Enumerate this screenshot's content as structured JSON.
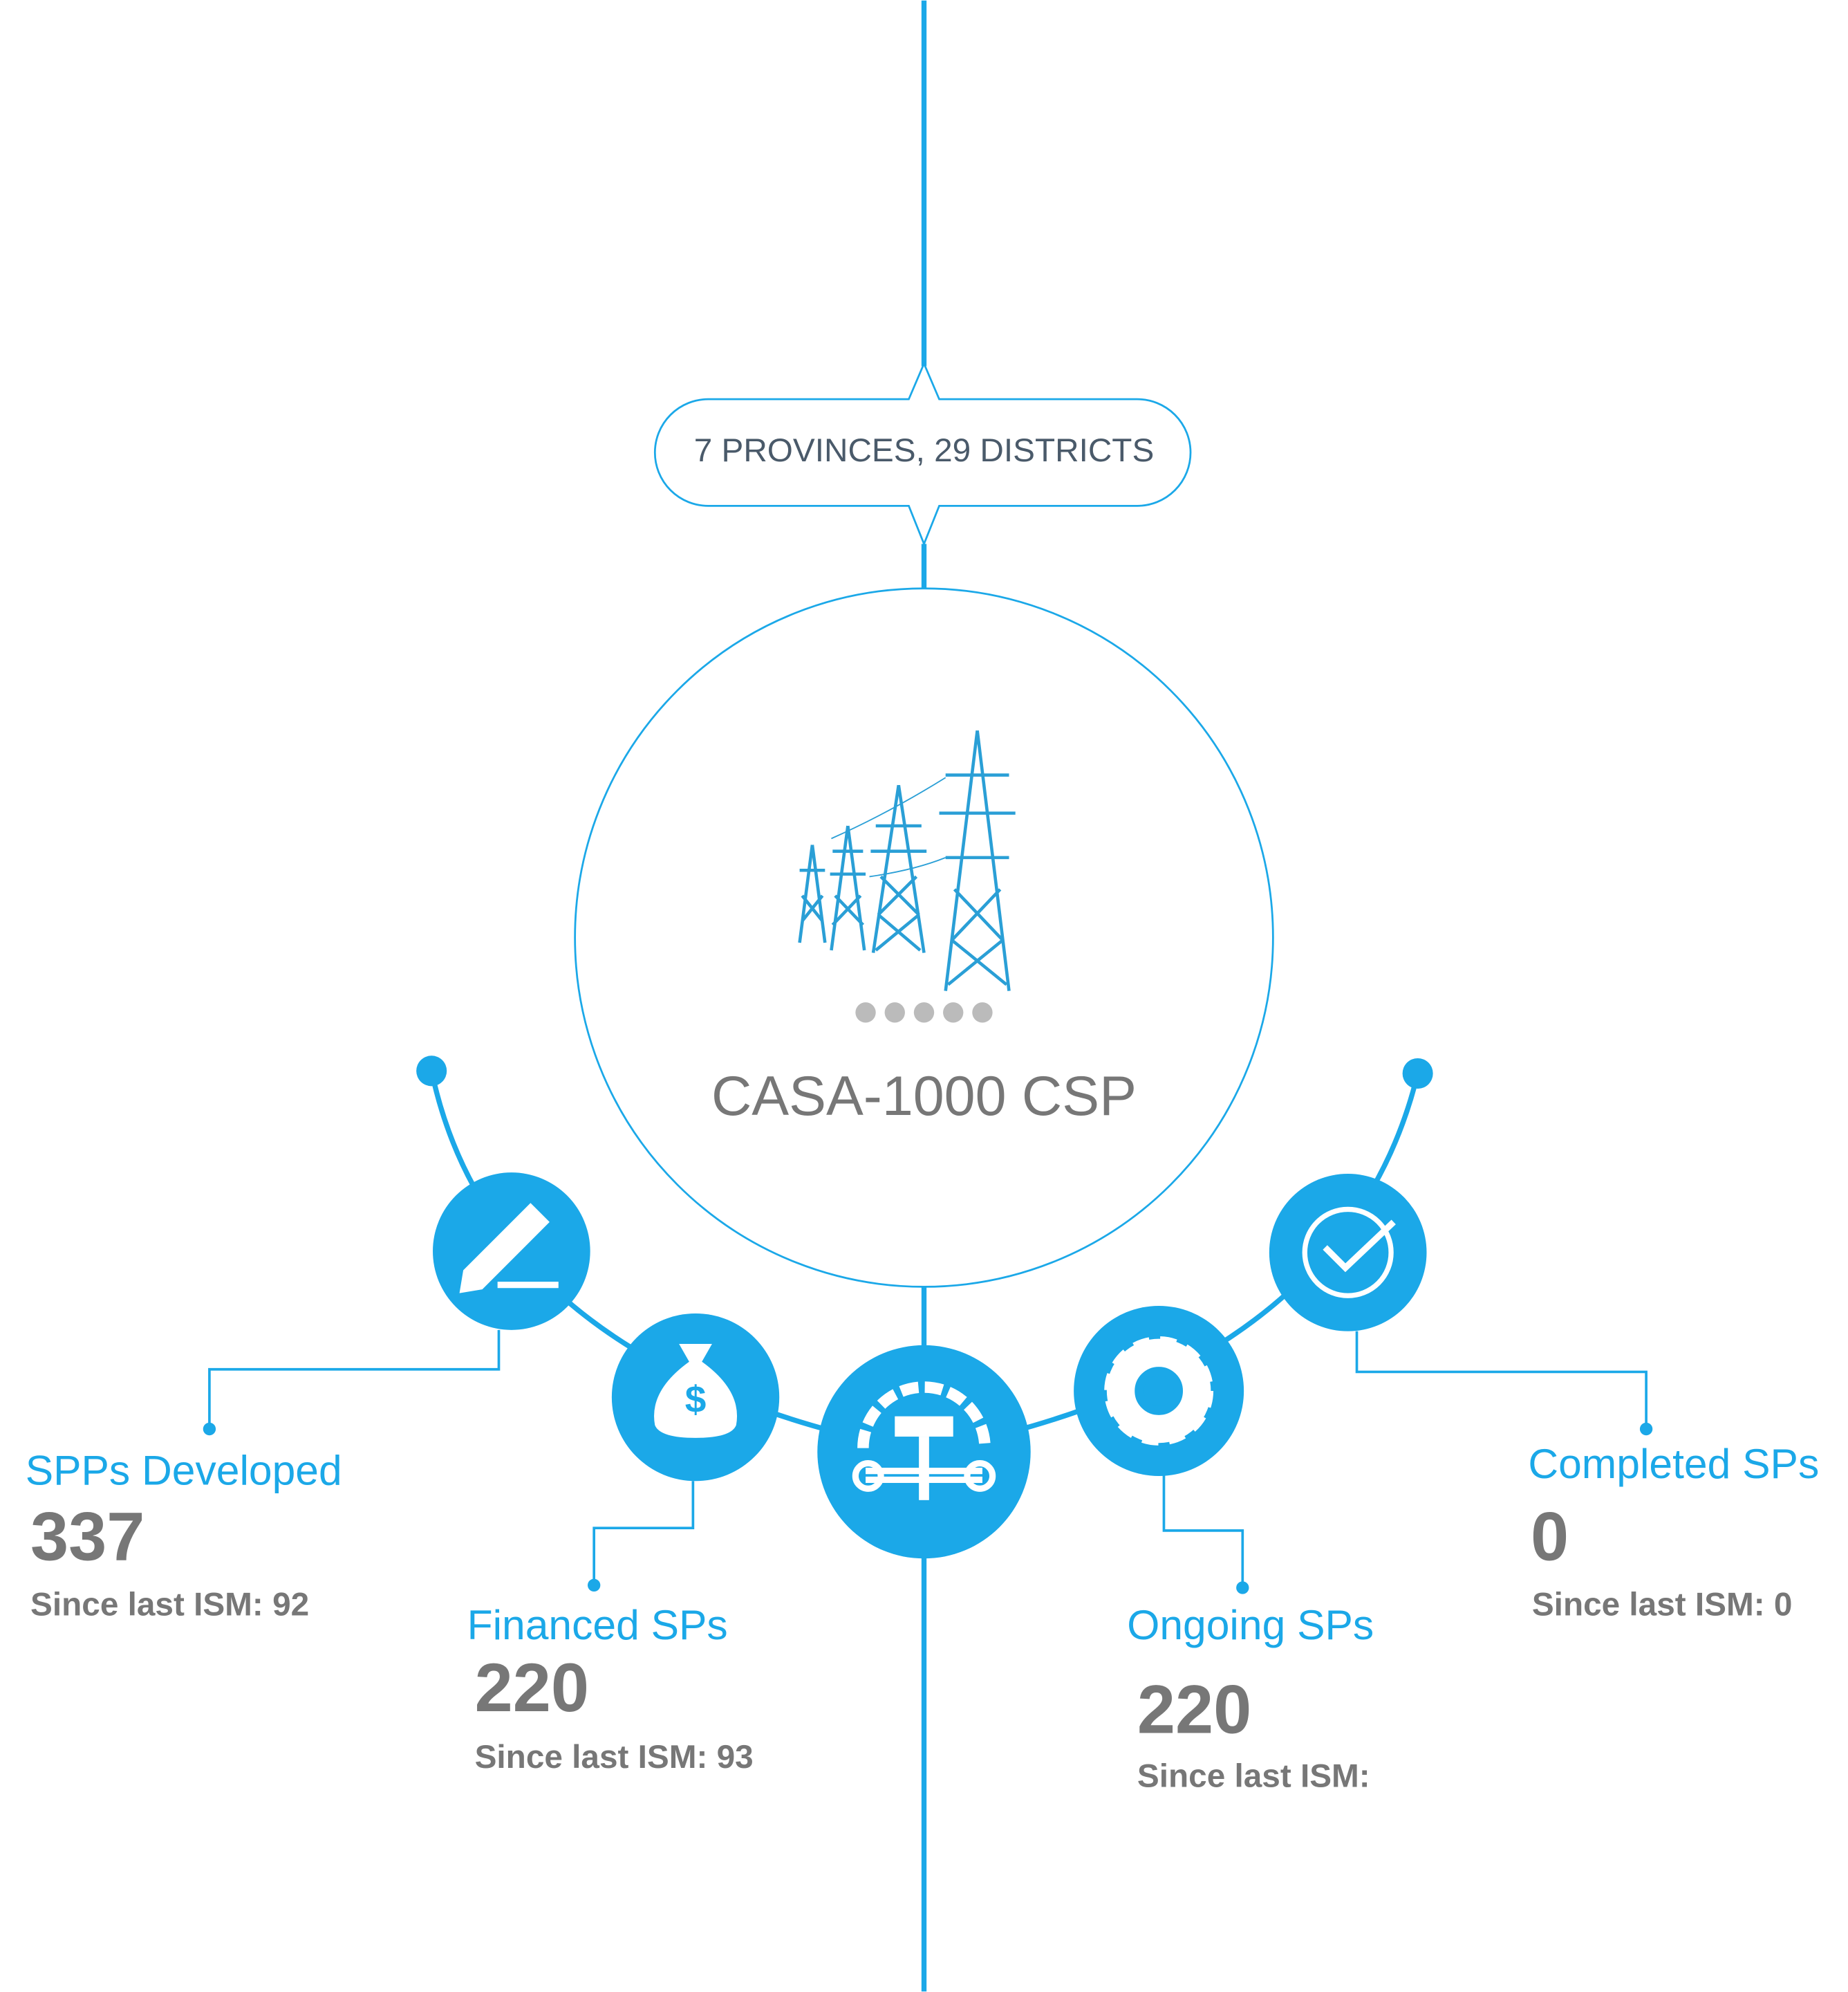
{
  "badge": "7 PROVINCES, 29 DISTRICTS",
  "center": {
    "title": "CASA-1000 CSP"
  },
  "stats": [
    {
      "label": "SPPs Developed",
      "value": 337,
      "since": "Since last ISM: 92"
    },
    {
      "label": "Financed SPs",
      "value": 220,
      "since": "Since last ISM: 93"
    },
    {
      "label": "Ongoing SPs",
      "value": 220,
      "since": "Since last ISM:"
    },
    {
      "label": "Completed SPs",
      "value": 0,
      "since": "Since last ISM: 0"
    }
  ]
}
